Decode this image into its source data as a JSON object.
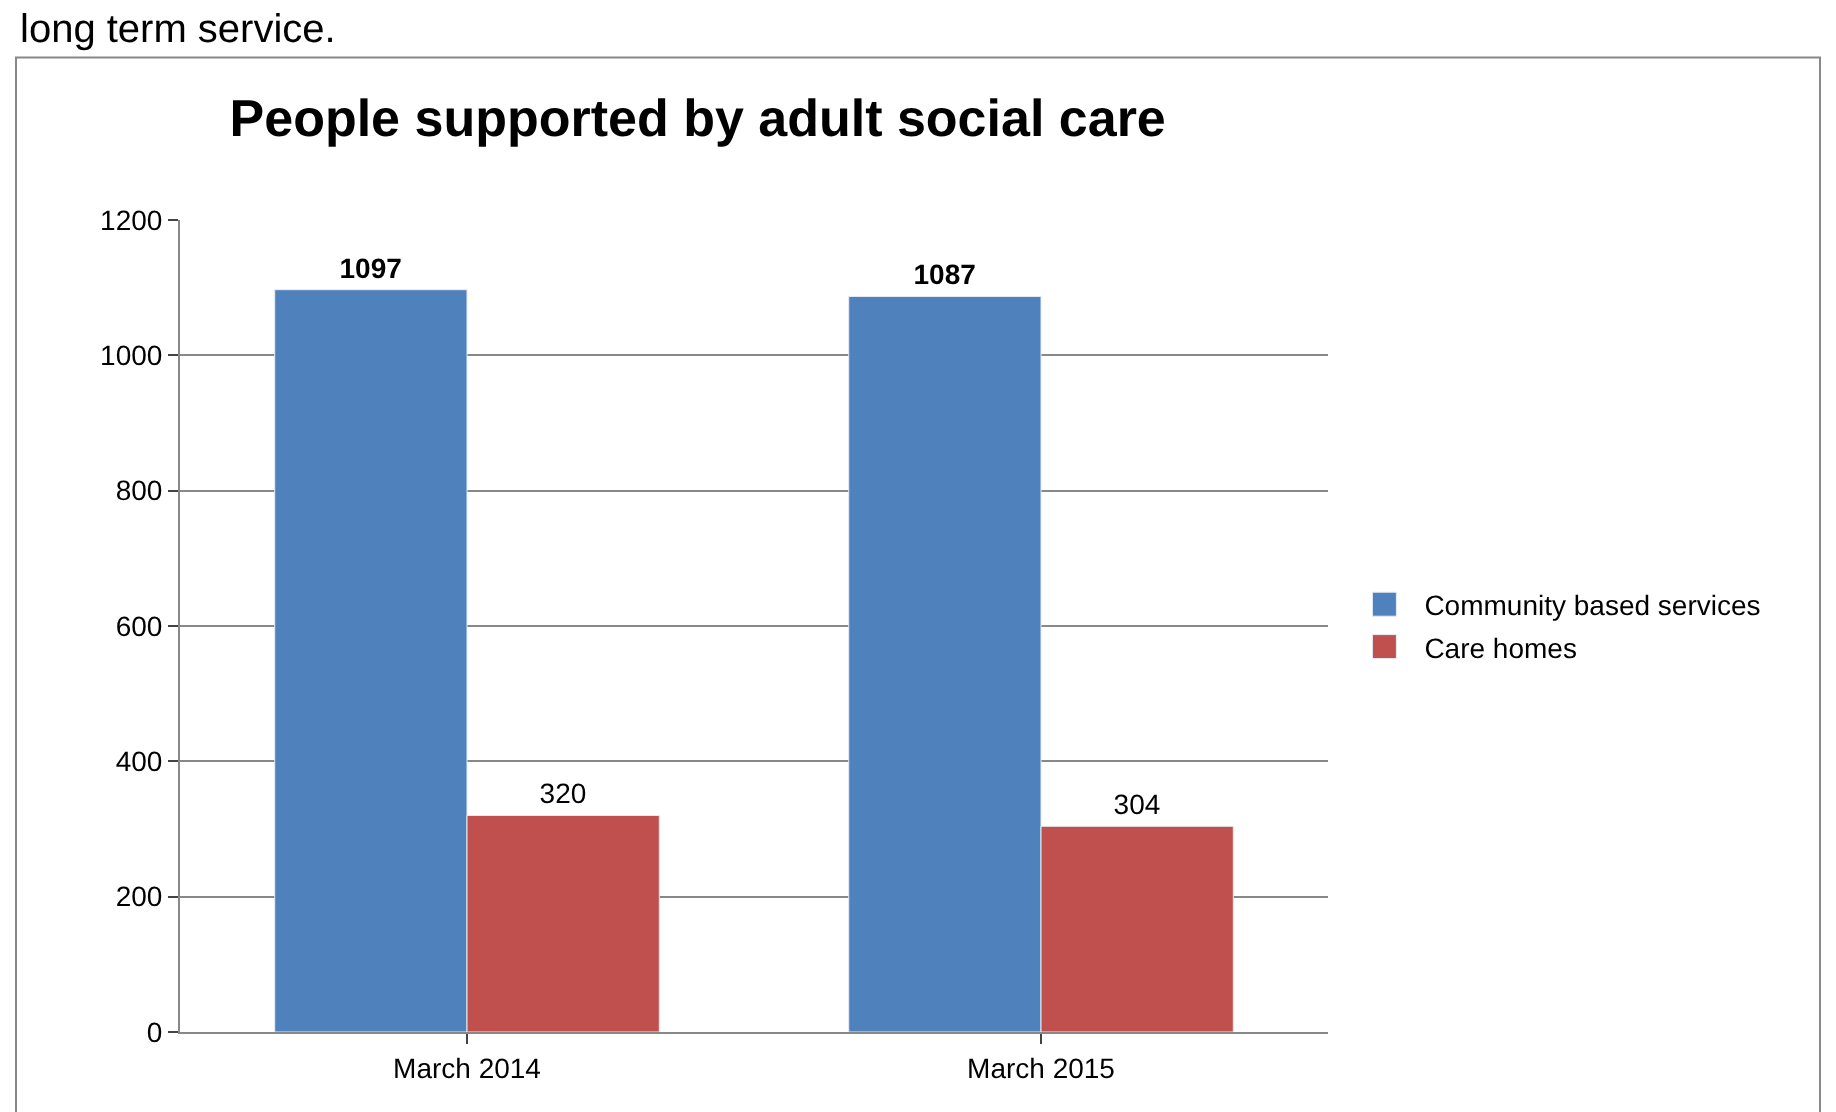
{
  "chart_data": {
    "type": "bar",
    "title": "People supported by adult social care",
    "annotations": [
      "long term service."
    ],
    "categories": [
      "March 2014",
      "March 2015"
    ],
    "series": [
      {
        "name": "Community based services",
        "color": "#4f81bd",
        "values": [
          1097,
          1087
        ]
      },
      {
        "name": "Care homes",
        "color": "#c0504d",
        "values": [
          320,
          304
        ]
      }
    ],
    "ylim": [
      0,
      1200
    ],
    "yticks": [
      0,
      200,
      400,
      600,
      800,
      1000,
      1200
    ],
    "grid": "y",
    "legend": "right",
    "data_labels": true
  }
}
